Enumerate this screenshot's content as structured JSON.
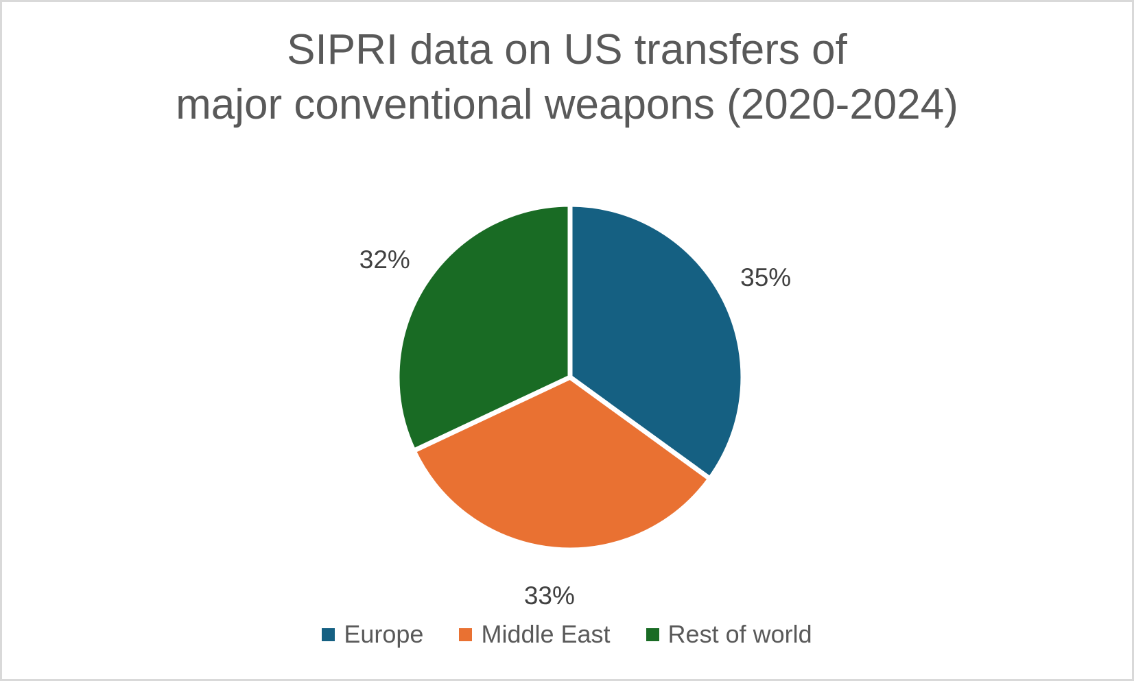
{
  "page": {
    "background_color": "#ffffff",
    "border_color": "#d9d9d9"
  },
  "chart_data": {
    "type": "pie",
    "title_lines": [
      "SIPRI data on US transfers of",
      "major conventional weapons (2020-2024)"
    ],
    "title": "SIPRI data on US transfers of major conventional weapons (2020-2024)",
    "categories": [
      "Europe",
      "Middle East",
      "Rest of world"
    ],
    "values": [
      35,
      33,
      32
    ],
    "labels": [
      "35%",
      "33%",
      "32%"
    ],
    "unit": "%",
    "colors": [
      "#156082",
      "#E97132",
      "#196B24"
    ],
    "start_angle_deg": 0,
    "direction": "clockwise",
    "slice_separator_color": "#ffffff",
    "label_position": "outside-end",
    "legend_position": "bottom",
    "title_color": "#595959",
    "label_color": "#404040",
    "legend_text_color": "#595959"
  }
}
